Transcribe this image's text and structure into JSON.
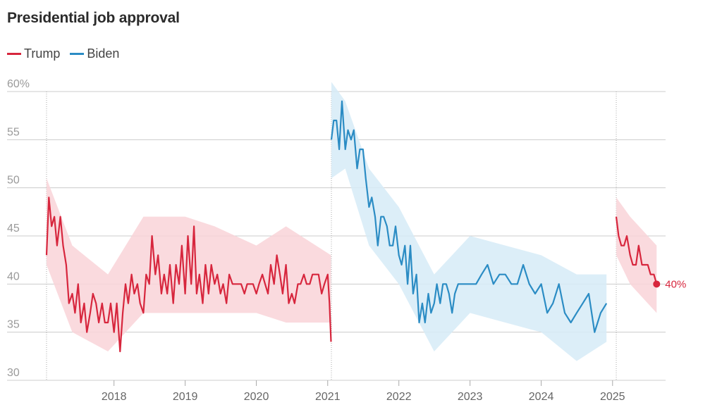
{
  "title": "Presidential job approval",
  "colors": {
    "trump": "#d7263d",
    "biden": "#2b8cc4",
    "trump_band": "#f9d4d8",
    "biden_band": "#d6ebf7",
    "grid": "#cccccc"
  },
  "chart_data": {
    "type": "line",
    "title": "Presidential job approval",
    "xlabel": "",
    "ylabel": "",
    "ylim": [
      30,
      60
    ],
    "xlim": [
      "2017-01-20",
      "2025-09-30"
    ],
    "y_ticks": [
      "60%",
      "55",
      "50",
      "45",
      "40",
      "35",
      "30"
    ],
    "x_ticks": [
      "2018",
      "2019",
      "2020",
      "2021",
      "2022",
      "2023",
      "2024",
      "2025"
    ],
    "x_tick_dates": [
      "2018-01-01",
      "2019-01-01",
      "2020-01-01",
      "2021-01-01",
      "2022-01-01",
      "2023-01-01",
      "2024-01-01",
      "2025-01-01"
    ],
    "vertical_reference_dates": [
      "2017-01-20",
      "2021-01-20",
      "2025-01-20"
    ],
    "end_label": "40%",
    "series": [
      {
        "name": "Trump",
        "color": "#d7263d",
        "x": [
          "2017-01-20",
          "2017-02-01",
          "2017-02-15",
          "2017-03-01",
          "2017-03-15",
          "2017-04-01",
          "2017-04-15",
          "2017-05-01",
          "2017-05-15",
          "2017-06-01",
          "2017-06-15",
          "2017-07-01",
          "2017-07-15",
          "2017-08-01",
          "2017-08-15",
          "2017-09-01",
          "2017-09-15",
          "2017-10-01",
          "2017-10-15",
          "2017-11-01",
          "2017-11-15",
          "2017-12-01",
          "2017-12-15",
          "2018-01-01",
          "2018-01-15",
          "2018-02-01",
          "2018-02-15",
          "2018-03-01",
          "2018-03-15",
          "2018-04-01",
          "2018-04-15",
          "2018-05-01",
          "2018-05-15",
          "2018-06-01",
          "2018-06-15",
          "2018-07-01",
          "2018-07-15",
          "2018-08-01",
          "2018-08-15",
          "2018-09-01",
          "2018-09-15",
          "2018-10-01",
          "2018-10-15",
          "2018-11-01",
          "2018-11-15",
          "2018-12-01",
          "2018-12-15",
          "2019-01-01",
          "2019-01-15",
          "2019-02-01",
          "2019-02-15",
          "2019-03-01",
          "2019-03-15",
          "2019-04-01",
          "2019-04-15",
          "2019-05-01",
          "2019-05-15",
          "2019-06-01",
          "2019-06-15",
          "2019-07-01",
          "2019-07-15",
          "2019-08-01",
          "2019-08-15",
          "2019-09-01",
          "2019-09-15",
          "2019-10-01",
          "2019-10-15",
          "2019-11-01",
          "2019-11-15",
          "2019-12-01",
          "2019-12-15",
          "2020-01-01",
          "2020-01-15",
          "2020-02-01",
          "2020-02-15",
          "2020-03-01",
          "2020-03-15",
          "2020-04-01",
          "2020-04-15",
          "2020-05-01",
          "2020-05-15",
          "2020-06-01",
          "2020-06-15",
          "2020-07-01",
          "2020-07-15",
          "2020-08-01",
          "2020-08-15",
          "2020-09-01",
          "2020-09-15",
          "2020-10-01",
          "2020-10-15",
          "2020-11-01",
          "2020-11-15",
          "2020-12-01",
          "2020-12-15",
          "2021-01-01",
          "2021-01-10",
          "2021-01-18",
          "2025-01-20",
          "2025-02-01",
          "2025-02-15",
          "2025-03-01",
          "2025-03-15",
          "2025-04-01",
          "2025-04-15",
          "2025-05-01",
          "2025-05-15",
          "2025-06-01",
          "2025-06-15",
          "2025-07-01",
          "2025-07-15",
          "2025-08-01",
          "2025-08-15"
        ],
        "y": [
          43,
          49,
          46,
          47,
          44,
          47,
          44,
          42,
          38,
          39,
          37,
          40,
          36,
          38,
          35,
          37,
          39,
          38,
          36,
          38,
          36,
          36,
          38,
          35,
          38,
          33,
          37,
          40,
          38,
          41,
          39,
          40,
          38,
          37,
          41,
          40,
          45,
          41,
          43,
          39,
          41,
          39,
          42,
          38,
          42,
          40,
          44,
          39,
          45,
          40,
          46,
          39,
          41,
          38,
          42,
          39,
          42,
          40,
          41,
          39,
          40,
          38,
          41,
          40,
          40,
          40,
          40,
          39,
          40,
          40,
          40,
          39,
          40,
          41,
          40,
          39,
          42,
          40,
          43,
          41,
          39,
          42,
          38,
          39,
          38,
          40,
          40,
          41,
          40,
          40,
          41,
          41,
          41,
          39,
          40,
          41,
          38,
          34,
          47,
          45,
          44,
          44,
          45,
          43,
          42,
          42,
          44,
          42,
          42,
          42,
          41,
          41,
          40
        ]
      },
      {
        "name": "Biden",
        "color": "#2b8cc4",
        "x": [
          "2021-01-20",
          "2021-02-01",
          "2021-02-15",
          "2021-03-01",
          "2021-03-15",
          "2021-04-01",
          "2021-04-15",
          "2021-05-01",
          "2021-05-15",
          "2021-06-01",
          "2021-06-15",
          "2021-07-01",
          "2021-07-15",
          "2021-08-01",
          "2021-08-15",
          "2021-09-01",
          "2021-09-15",
          "2021-10-01",
          "2021-10-15",
          "2021-11-01",
          "2021-11-15",
          "2021-12-01",
          "2021-12-15",
          "2022-01-01",
          "2022-01-15",
          "2022-02-01",
          "2022-02-15",
          "2022-03-01",
          "2022-03-15",
          "2022-04-01",
          "2022-04-15",
          "2022-05-01",
          "2022-05-15",
          "2022-06-01",
          "2022-06-15",
          "2022-07-01",
          "2022-07-15",
          "2022-08-01",
          "2022-08-15",
          "2022-09-01",
          "2022-09-15",
          "2022-10-01",
          "2022-10-15",
          "2022-11-01",
          "2022-12-01",
          "2023-01-01",
          "2023-02-01",
          "2023-03-01",
          "2023-04-01",
          "2023-05-01",
          "2023-06-01",
          "2023-07-01",
          "2023-08-01",
          "2023-09-01",
          "2023-10-01",
          "2023-11-01",
          "2023-12-01",
          "2024-01-01",
          "2024-02-01",
          "2024-03-01",
          "2024-04-01",
          "2024-05-01",
          "2024-06-01",
          "2024-07-01",
          "2024-08-01",
          "2024-09-01",
          "2024-10-01",
          "2024-11-01",
          "2024-12-01"
        ],
        "y": [
          55,
          57,
          57,
          54,
          59,
          54,
          56,
          55,
          56,
          52,
          54,
          54,
          51,
          48,
          49,
          47,
          44,
          47,
          47,
          46,
          44,
          44,
          46,
          43,
          42,
          44,
          40,
          44,
          39,
          41,
          36,
          38,
          36,
          39,
          37,
          38,
          40,
          38,
          40,
          40,
          39,
          37,
          39,
          40,
          40,
          40,
          40,
          41,
          42,
          40,
          41,
          41,
          40,
          40,
          42,
          40,
          39,
          40,
          37,
          38,
          40,
          37,
          36,
          37,
          38,
          39,
          35,
          37,
          38
        ]
      }
    ],
    "bands": [
      {
        "series": "Trump",
        "x": [
          "2017-01-20",
          "2017-06-01",
          "2017-12-01",
          "2018-06-01",
          "2019-01-01",
          "2019-06-01",
          "2020-01-01",
          "2020-06-01",
          "2021-01-18",
          "2025-01-20",
          "2025-04-01",
          "2025-08-15"
        ],
        "upper": [
          51,
          44,
          41,
          47,
          47,
          46,
          44,
          46,
          43,
          49,
          47,
          44
        ],
        "lower": [
          42,
          35,
          33,
          37,
          37,
          37,
          37,
          36,
          36,
          43,
          40,
          37
        ]
      },
      {
        "series": "Biden",
        "x": [
          "2021-01-20",
          "2021-04-01",
          "2021-08-01",
          "2022-01-01",
          "2022-07-01",
          "2023-01-01",
          "2023-07-01",
          "2024-01-01",
          "2024-07-01",
          "2024-12-01"
        ],
        "upper": [
          61,
          59,
          52,
          48,
          41,
          45,
          44,
          43,
          41,
          41
        ],
        "lower": [
          51,
          52,
          44,
          40,
          33,
          37,
          36,
          35,
          32,
          34
        ]
      }
    ]
  }
}
